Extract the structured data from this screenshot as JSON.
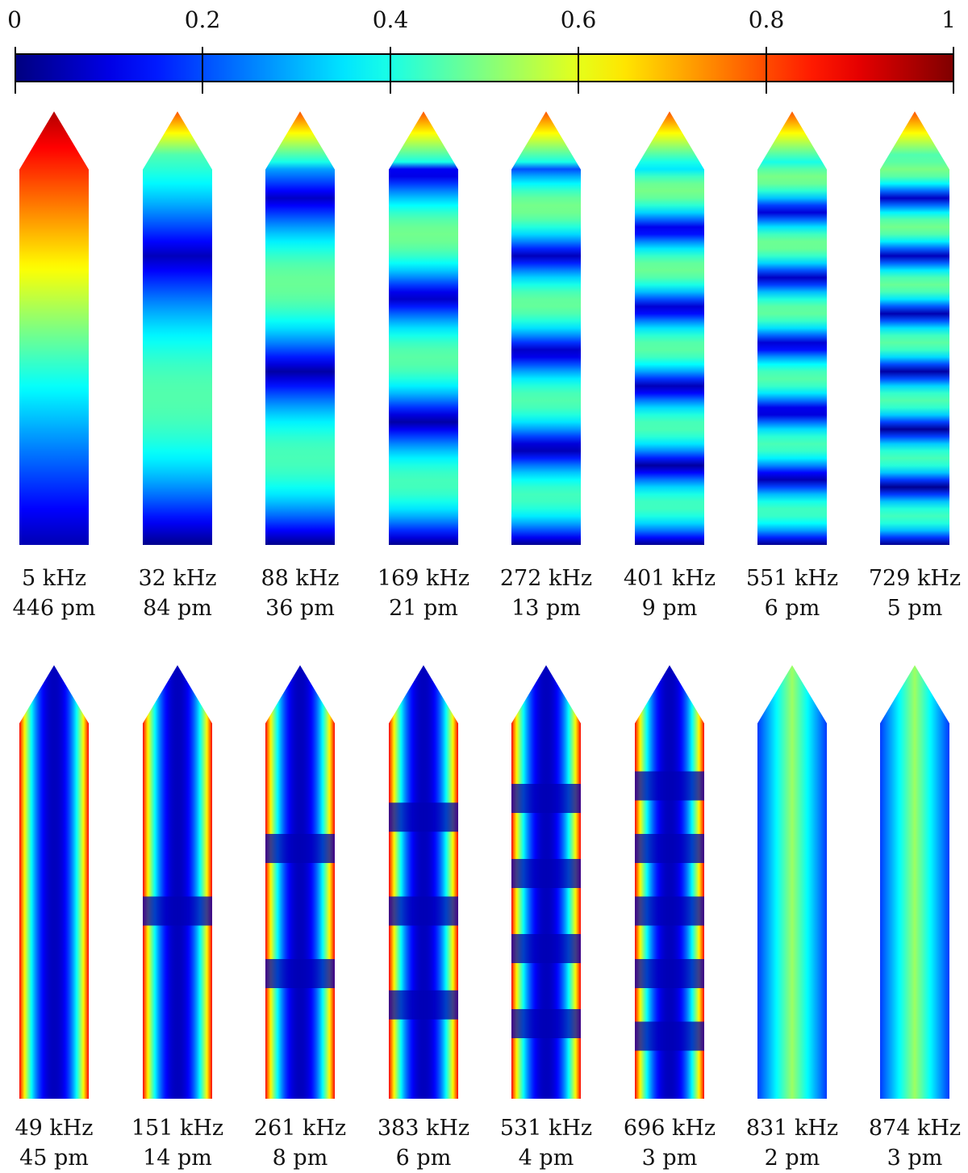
{
  "colorbar": {
    "ticks": [
      "0",
      "0.2",
      "0.4",
      "0.6",
      "0.8",
      "1"
    ],
    "tick_values": [
      0,
      0.2,
      0.4,
      0.6,
      0.8,
      1.0
    ],
    "colormap": "jet",
    "colors": [
      "#00007f",
      "#0000ff",
      "#00ffff",
      "#ffff00",
      "#ff0000",
      "#7f0000"
    ]
  },
  "rows": [
    {
      "pattern": "bands",
      "modes": [
        {
          "freq": "5 kHz",
          "amp": "446 pm",
          "bands": 0
        },
        {
          "freq": "32 kHz",
          "amp": "84 pm",
          "bands": 1
        },
        {
          "freq": "88 kHz",
          "amp": "36 pm",
          "bands": 2
        },
        {
          "freq": "169 kHz",
          "amp": "21 pm",
          "bands": 3
        },
        {
          "freq": "272 kHz",
          "amp": "13 pm",
          "bands": 4
        },
        {
          "freq": "401 kHz",
          "amp": "9 pm",
          "bands": 5
        },
        {
          "freq": "551 kHz",
          "amp": "6 pm",
          "bands": 6
        },
        {
          "freq": "729 kHz",
          "amp": "5 pm",
          "bands": 7
        }
      ]
    },
    {
      "pattern": "edges",
      "modes": [
        {
          "freq": "49 kHz",
          "amp": "45 pm",
          "lobes": 1
        },
        {
          "freq": "151 kHz",
          "amp": "14 pm",
          "lobes": 2
        },
        {
          "freq": "261 kHz",
          "amp": "8 pm",
          "lobes": 3
        },
        {
          "freq": "383 kHz",
          "amp": "6 pm",
          "lobes": 4
        },
        {
          "freq": "531 kHz",
          "amp": "4 pm",
          "lobes": 5
        },
        {
          "freq": "696 kHz",
          "amp": "3 pm",
          "lobes": 6
        },
        {
          "freq": "831 kHz",
          "amp": "2 pm",
          "lobes": 0
        },
        {
          "freq": "874 kHz",
          "amp": "3 pm",
          "lobes": 0
        }
      ]
    }
  ]
}
